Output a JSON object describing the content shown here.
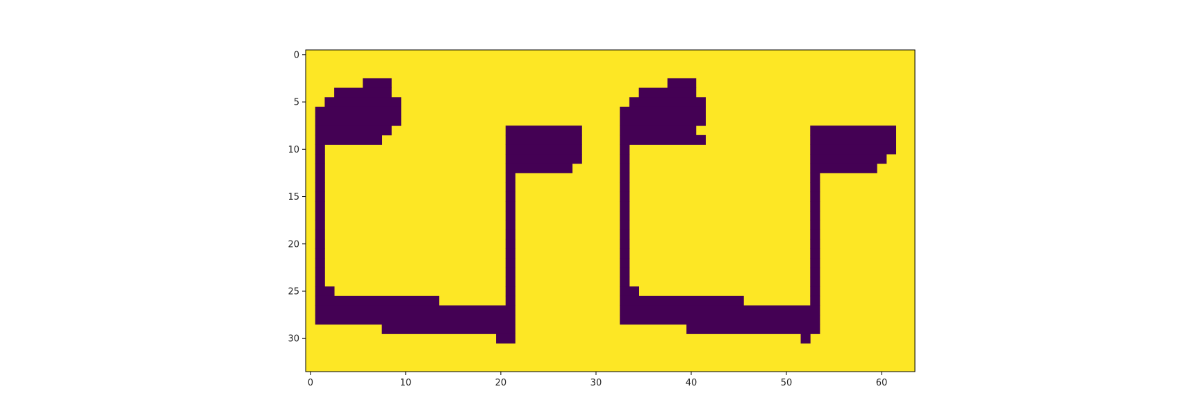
{
  "chart_data": {
    "type": "heatmap",
    "title": "",
    "xlabel": "",
    "ylabel": "",
    "xlim": [
      -0.5,
      63.5
    ],
    "ylim": [
      33.5,
      -0.5
    ],
    "x_ticks": [
      "0",
      "10",
      "20",
      "30",
      "40",
      "50",
      "60"
    ],
    "y_ticks": [
      "0",
      "5",
      "10",
      "15",
      "20",
      "25",
      "30"
    ],
    "grid": false,
    "colors": {
      "background": "#fde725",
      "foreground": "#440154"
    },
    "rows": [
      "",
      "",
      "",
      "6-8:38-40",
      "3-8:35-40",
      "2-9:34-41",
      "1-9:33-41",
      "1-9:33-41",
      "1-8:21-28:33-40:53-61",
      "1-7:21-28:33-41:53-61",
      "1-1:21-28:33-33:53-61",
      "1-1:21-28:33-33:53-60",
      "1-1:21-27:33-33:53-59",
      "1-1:21-21:33-33:53-53",
      "1-1:21-21:33-33:53-53",
      "1-1:21-21:33-33:53-53",
      "1-1:21-21:33-33:53-53",
      "1-1:21-21:33-33:53-53",
      "1-1:21-21:33-33:53-53",
      "1-1:21-21:33-33:53-53",
      "1-1:21-21:33-33:53-53",
      "1-1:21-21:33-33:53-53",
      "1-1:21-21:33-33:53-53",
      "1-1:21-21:33-33:53-53",
      "1-1:21-21:33-33:53-53",
      "1-2:21-21:33-34:53-53",
      "1-13:21-21:33-45:53-53",
      "1-21:33-53",
      "1-21:33-53",
      "8-21:40-53",
      "20-21:52-52",
      "",
      "",
      ""
    ]
  }
}
